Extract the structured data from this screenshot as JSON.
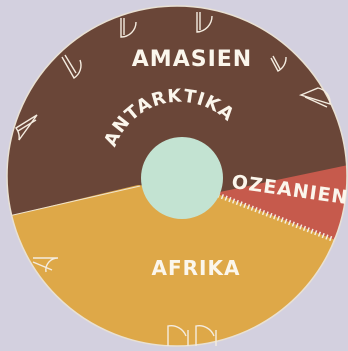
{
  "board": {
    "background": "#d3d0df",
    "hub_color": "#c3e3d2",
    "regions": [
      {
        "id": "amasien",
        "label": "AMASIEN",
        "color": "#6a4638"
      },
      {
        "id": "antarktika",
        "label": "ANTARKTIKA",
        "color": "#6a4638"
      },
      {
        "id": "ozeanien",
        "label": "OZEANIEN",
        "color": "#c65a4c"
      },
      {
        "id": "afrika",
        "label": "AFRIKA",
        "color": "#dea848"
      }
    ]
  }
}
